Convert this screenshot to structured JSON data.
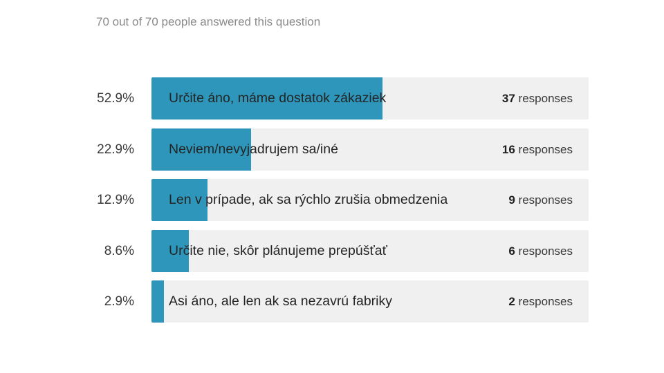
{
  "summary": "70 out of 70 people answered this question",
  "chart_data": {
    "type": "bar",
    "orientation": "horizontal",
    "total": 70,
    "response_word": "responses",
    "bar_color": "#2d96ba",
    "track_color": "#f0f0f0",
    "categories": [
      "Určite áno, máme dostatok zákaziek",
      "Neviem/nevyjadrujem sa/iné",
      "Len v prípade, ak sa rýchlo zrušia obmedzenia",
      "Určite nie, skôr plánujeme prepúšťať",
      "Asi áno, ale len ak sa nezavrú fabriky"
    ],
    "values": [
      37,
      16,
      9,
      6,
      2
    ],
    "percent_labels": [
      "52.9%",
      "22.9%",
      "12.9%",
      "8.6%",
      "2.9%"
    ]
  }
}
